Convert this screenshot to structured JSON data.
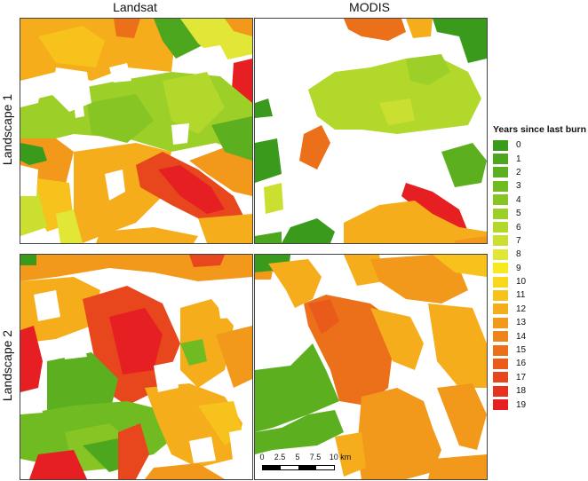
{
  "columns": [
    "Landsat",
    "MODIS"
  ],
  "rows": [
    "Landscape 1",
    "Landscape 2"
  ],
  "legend": {
    "title": "Years since last burn",
    "items": [
      {
        "label": "0",
        "color": "#3a9a1c"
      },
      {
        "label": "1",
        "color": "#4ca61e"
      },
      {
        "label": "2",
        "color": "#5cb020"
      },
      {
        "label": "3",
        "color": "#70bb22"
      },
      {
        "label": "4",
        "color": "#86c524"
      },
      {
        "label": "5",
        "color": "#9ccf28"
      },
      {
        "label": "6",
        "color": "#b2d82c"
      },
      {
        "label": "7",
        "color": "#cadf30"
      },
      {
        "label": "8",
        "color": "#e2e636"
      },
      {
        "label": "9",
        "color": "#f6ea1e"
      },
      {
        "label": "10",
        "color": "#f8d71c"
      },
      {
        "label": "11",
        "color": "#f7c21c"
      },
      {
        "label": "12",
        "color": "#f5ad1b"
      },
      {
        "label": "13",
        "color": "#f2981a"
      },
      {
        "label": "14",
        "color": "#ef841a"
      },
      {
        "label": "15",
        "color": "#ec6f1a"
      },
      {
        "label": "16",
        "color": "#ea5b1b"
      },
      {
        "label": "17",
        "color": "#e8471d"
      },
      {
        "label": "18",
        "color": "#e6331f"
      },
      {
        "label": "19",
        "color": "#e51f22"
      }
    ]
  },
  "scalebar": {
    "ticks": [
      "0",
      "2.5",
      "5",
      "7.5",
      "10 km"
    ]
  }
}
